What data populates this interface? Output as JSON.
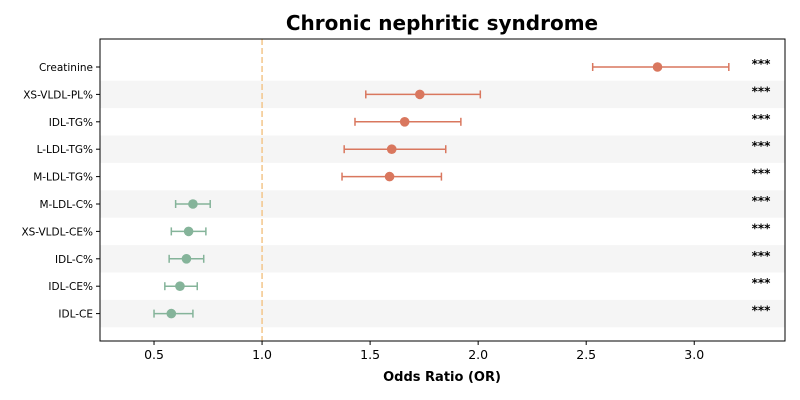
{
  "chart_data": {
    "type": "forest",
    "title": "Chronic nephritic syndrome",
    "xlabel": "Odds Ratio (OR)",
    "ylabel": "",
    "xlim": [
      0.25,
      3.42
    ],
    "xticks": [
      "0.5",
      "1.0",
      "1.5",
      "2.0",
      "2.5",
      "3.0"
    ],
    "reference_line": 1.0,
    "grid": false,
    "row_shading": "alternating",
    "colors": {
      "risk": "#d9775e",
      "protective": "#85b49a",
      "reference": "#f3c68a",
      "stripe": "#f5f5f5"
    },
    "rows": [
      {
        "label": "Creatinine",
        "or": 2.83,
        "ci_low": 2.53,
        "ci_high": 3.16,
        "sig": "***",
        "group": "risk"
      },
      {
        "label": "XS-VLDL-PL%",
        "or": 1.73,
        "ci_low": 1.48,
        "ci_high": 2.01,
        "sig": "***",
        "group": "risk"
      },
      {
        "label": "IDL-TG%",
        "or": 1.66,
        "ci_low": 1.43,
        "ci_high": 1.92,
        "sig": "***",
        "group": "risk"
      },
      {
        "label": "L-LDL-TG%",
        "or": 1.6,
        "ci_low": 1.38,
        "ci_high": 1.85,
        "sig": "***",
        "group": "risk"
      },
      {
        "label": "M-LDL-TG%",
        "or": 1.59,
        "ci_low": 1.37,
        "ci_high": 1.83,
        "sig": "***",
        "group": "risk"
      },
      {
        "label": "M-LDL-C%",
        "or": 0.68,
        "ci_low": 0.6,
        "ci_high": 0.76,
        "sig": "***",
        "group": "protective"
      },
      {
        "label": "XS-VLDL-CE%",
        "or": 0.66,
        "ci_low": 0.58,
        "ci_high": 0.74,
        "sig": "***",
        "group": "protective"
      },
      {
        "label": "IDL-C%",
        "or": 0.65,
        "ci_low": 0.57,
        "ci_high": 0.73,
        "sig": "***",
        "group": "protective"
      },
      {
        "label": "IDL-CE%",
        "or": 0.62,
        "ci_low": 0.55,
        "ci_high": 0.7,
        "sig": "***",
        "group": "protective"
      },
      {
        "label": "IDL-CE",
        "or": 0.58,
        "ci_low": 0.5,
        "ci_high": 0.68,
        "sig": "***",
        "group": "protective"
      }
    ]
  }
}
